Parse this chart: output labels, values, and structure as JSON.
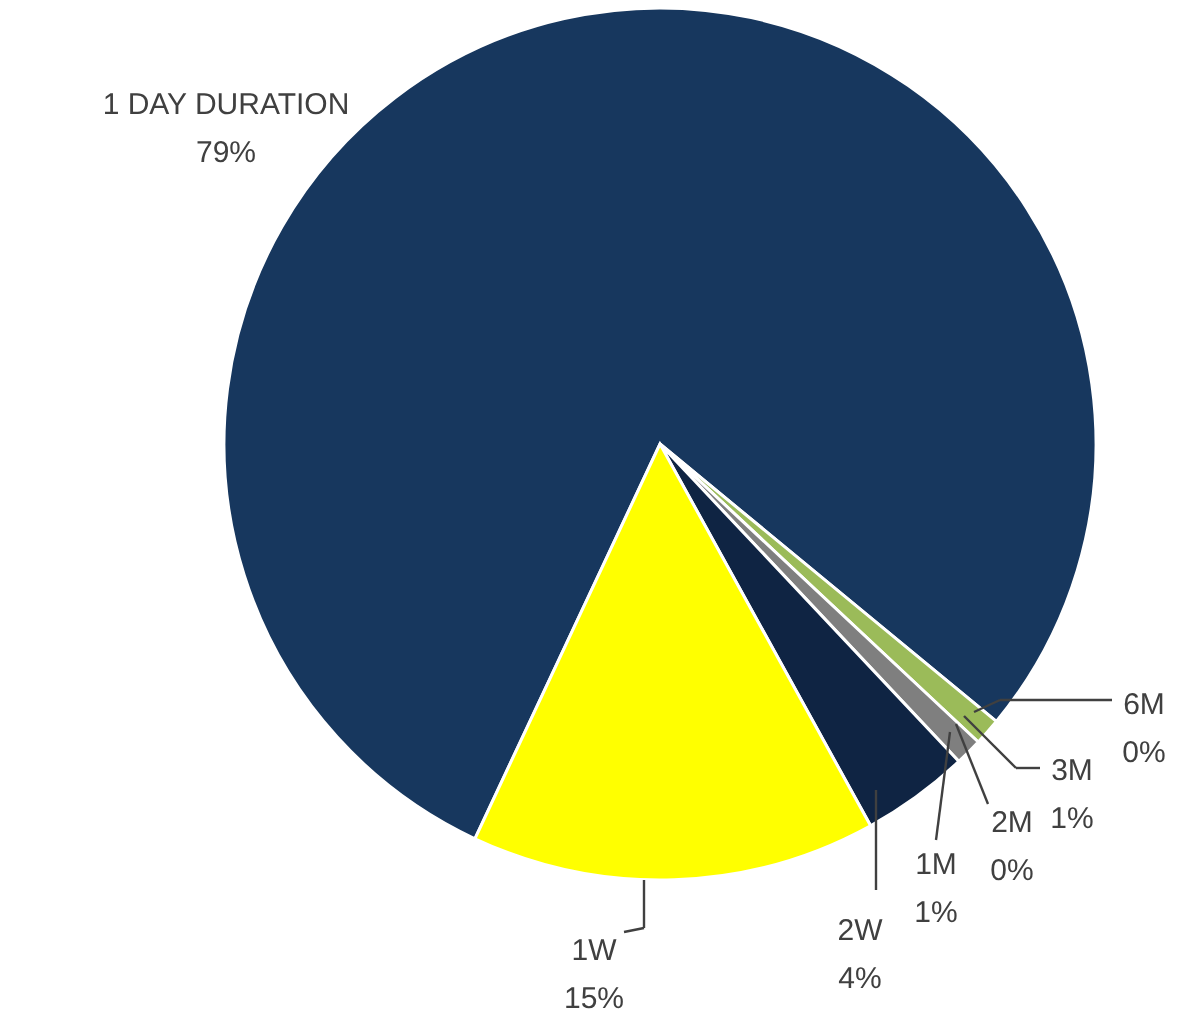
{
  "chart_data": {
    "type": "pie",
    "categories": [
      "1 DAY DURATION",
      "6M",
      "3M",
      "2M",
      "1M",
      "2W",
      "1W"
    ],
    "values": [
      79,
      0,
      1,
      0,
      1,
      4,
      15
    ],
    "colors": [
      "#17375e",
      "#1f3f99",
      "#9bbb59",
      "#4bacc6",
      "#7f7f7f",
      "#0f2443",
      "#ffff00"
    ],
    "value_labels": [
      "79%",
      "0%",
      "1%",
      "0%",
      "1%",
      "4%",
      "15%"
    ]
  }
}
